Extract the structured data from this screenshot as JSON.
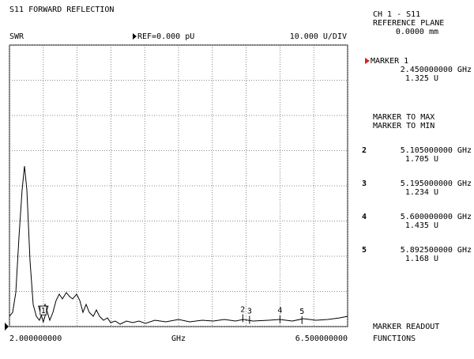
{
  "chart_data": {
    "type": "line",
    "title": "S11 FORWARD REFLECTION",
    "format": "SWR",
    "reference": "REF=0.000 pU",
    "scale": "10.000 U/DIV",
    "x_unit": "GHz",
    "xlim": [
      2,
      6.5
    ],
    "xticks": [
      {
        "value": 2,
        "label": "2.000000000"
      },
      2.45,
      2.9,
      3.35,
      3.8,
      4.25,
      4.7,
      5.15,
      5.6,
      6.05,
      {
        "value": 6.5,
        "label": "6.500000000"
      }
    ],
    "ylim": [
      0,
      80
    ],
    "yticks": [
      0,
      10,
      20,
      30,
      40,
      50,
      60,
      70,
      80
    ],
    "grid": true,
    "series": [
      {
        "color": "#000000",
        "x": [
          2.0,
          2.042,
          2.084,
          2.126,
          2.168,
          2.2,
          2.231,
          2.273,
          2.315,
          2.357,
          2.399,
          2.442,
          2.473,
          2.505,
          2.536,
          2.578,
          2.62,
          2.662,
          2.704,
          2.757,
          2.799,
          2.841,
          2.894,
          2.936,
          2.978,
          3.02,
          3.062,
          3.114,
          3.157,
          3.199,
          3.251,
          3.304,
          3.346,
          3.409,
          3.472,
          3.556,
          3.64,
          3.724,
          3.808,
          3.935,
          4.082,
          4.25,
          4.397,
          4.566,
          4.713,
          4.86,
          5.007,
          5.112,
          5.238,
          5.449,
          5.596,
          5.764,
          5.911,
          6.079,
          6.237,
          6.395,
          6.5
        ],
        "values": [
          2.92,
          4.04,
          9.66,
          25.39,
          38.88,
          45.62,
          38.88,
          18.65,
          6.29,
          2.92,
          1.8,
          4.04,
          6.29,
          4.04,
          1.8,
          4.04,
          7.42,
          9.21,
          7.87,
          9.66,
          8.54,
          7.87,
          9.21,
          7.42,
          4.04,
          6.29,
          4.04,
          2.92,
          4.72,
          2.92,
          1.8,
          2.47,
          1.12,
          1.57,
          0.67,
          1.57,
          1.12,
          1.57,
          0.9,
          1.8,
          1.35,
          2.02,
          1.35,
          1.8,
          1.57,
          2.02,
          1.57,
          2.02,
          1.57,
          1.8,
          2.02,
          1.57,
          2.25,
          1.8,
          2.02,
          2.47,
          2.92
        ]
      }
    ],
    "markers": [
      {
        "id": "1",
        "freq": 2.45,
        "freq_label": "2.450000000 GHz",
        "value": 1.325,
        "value_label": "1.325 U",
        "active": true
      },
      {
        "id": "2",
        "freq": 5.105,
        "freq_label": "5.105000000 GHz",
        "value": 1.705,
        "value_label": "1.705 U",
        "active": false
      },
      {
        "id": "3",
        "freq": 5.195,
        "freq_label": "5.195000000 GHz",
        "value": 1.234,
        "value_label": "1.234 U",
        "active": false
      },
      {
        "id": "4",
        "freq": 5.6,
        "freq_label": "5.600000000 GHz",
        "value": 1.435,
        "value_label": "1.435 U",
        "active": false
      },
      {
        "id": "5",
        "freq": 5.8925,
        "freq_label": "5.892500000 GHz",
        "value": 1.168,
        "value_label": "1.168 U",
        "active": false
      }
    ]
  },
  "side_panel": {
    "channel": "CH 1 - S11",
    "reference_plane": "REFERENCE PLANE",
    "reference_plane_value": "0.0000 mm",
    "active_marker_title": "MARKER 1",
    "functions": [
      "MARKER TO MAX",
      "MARKER TO MIN"
    ],
    "footer": [
      "MARKER READOUT",
      "FUNCTIONS"
    ]
  }
}
